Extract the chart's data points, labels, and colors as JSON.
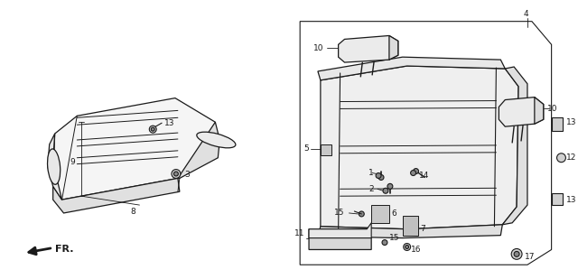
{
  "background_color": "#ffffff",
  "line_color": "#1a1a1a",
  "fig_width": 6.4,
  "fig_height": 3.09,
  "dpi": 100
}
